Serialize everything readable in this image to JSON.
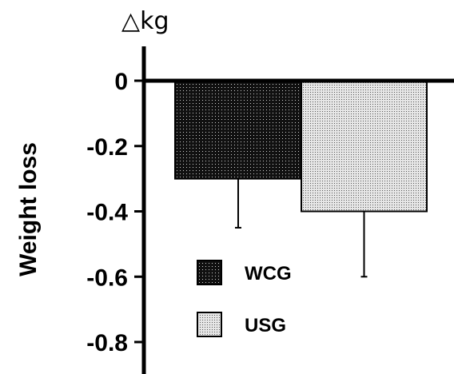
{
  "chart_data": {
    "type": "bar",
    "categories": [
      "WCG",
      "USG"
    ],
    "values": [
      -0.3,
      -0.4
    ],
    "error_bars": [
      0.15,
      0.2
    ],
    "ylabel": "Weight loss",
    "unit_label": "△kg",
    "ylim": [
      -0.9,
      0.1
    ],
    "yticks": [
      0,
      -0.2,
      -0.4,
      -0.6,
      -0.8
    ],
    "ytick_labels": [
      "0",
      "-0.2",
      "-0.4",
      "-0.6",
      "-0.8"
    ],
    "legend": [
      {
        "name": "WCG",
        "fill": "dark-dotted"
      },
      {
        "name": "USG",
        "fill": "light-dotted"
      }
    ],
    "legend_position": "bottom-left",
    "grid": false
  }
}
